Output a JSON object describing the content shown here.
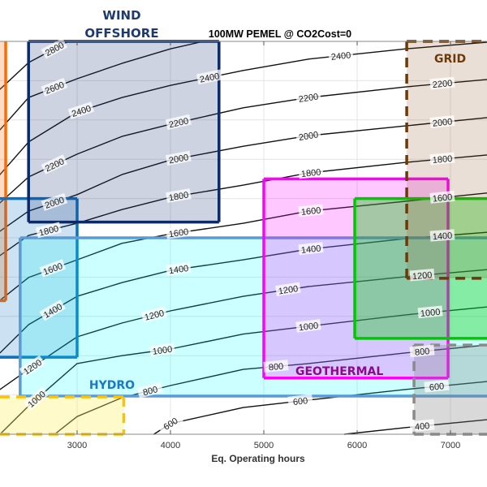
{
  "chart_data": {
    "type": "contour",
    "title": "100MW PEMEL @ CO2Cost=0",
    "xlabel": "Eq. Operating hours",
    "ylabel": "",
    "xlim": [
      2174,
      7391
    ],
    "ylim": [
      0,
      10
    ],
    "grid": true,
    "xticks": [
      3000,
      4000,
      5000,
      6000,
      7000
    ],
    "xtick_labels": [
      "3000",
      "4000",
      "5000",
      "6000",
      "7000"
    ],
    "yticks": [
      1,
      2,
      3,
      4,
      5,
      6,
      7,
      8,
      9
    ],
    "contour_x": [
      2174,
      2480,
      3000,
      3480,
      4000,
      4780,
      5480,
      6520,
      7390
    ],
    "contours": [
      {
        "level": 2800,
        "y": [
          8.78,
          9.46,
          10.12,
          10.54,
          10.85,
          11.47,
          11.8,
          12.1,
          12.3
        ],
        "labels_at": [
          2757
        ]
      },
      {
        "level": 2600,
        "y": [
          7.75,
          8.57,
          9.05,
          9.44,
          9.81,
          10.23,
          10.54,
          10.85,
          11.05
        ],
        "labels_at": [
          2757
        ]
      },
      {
        "level": 2400,
        "y": [
          6.61,
          7.44,
          8.2,
          8.57,
          8.88,
          9.26,
          9.55,
          9.81,
          9.98
        ],
        "labels_at": [
          3044,
          4418,
          5826,
          7000
        ]
      },
      {
        "level": 2200,
        "y": [
          5.89,
          6.55,
          7.13,
          7.58,
          7.89,
          8.31,
          8.57,
          8.84,
          9.03
        ],
        "labels_at": [
          2757,
          4087,
          5478,
          6913
        ]
      },
      {
        "level": 2000,
        "y": [
          5.17,
          5.68,
          6.1,
          6.61,
          6.98,
          7.33,
          7.6,
          7.85,
          8.06
        ],
        "labels_at": [
          2757,
          4087,
          5478,
          6913
        ]
      },
      {
        "level": 1800,
        "y": [
          4.55,
          5.06,
          5.37,
          5.72,
          6.03,
          6.34,
          6.65,
          6.92,
          7.11
        ],
        "labels_at": [
          2696,
          4087,
          5505,
          6913
        ]
      },
      {
        "level": 1600,
        "y": [
          3.41,
          3.99,
          4.44,
          4.86,
          5.1,
          5.37,
          5.68,
          5.93,
          6.14
        ],
        "labels_at": [
          2739,
          4087,
          5505,
          6913
        ]
      },
      {
        "level": 1400,
        "y": [
          2.07,
          2.79,
          3.51,
          3.86,
          4.17,
          4.44,
          4.71,
          4.98,
          5.14
        ],
        "labels_at": [
          2739,
          4087,
          5505,
          6913
        ]
      },
      {
        "level": 1200,
        "y": [
          1.14,
          1.65,
          2.48,
          2.83,
          3.14,
          3.51,
          3.76,
          4.01,
          4.19
        ],
        "labels_at": [
          2522,
          3826,
          5261,
          6696
        ]
      },
      {
        "level": 1000,
        "y": [
          0.0,
          0.72,
          1.8,
          2.0,
          2.17,
          2.55,
          2.75,
          3.04,
          3.24
        ],
        "labels_at": [
          2565,
          3913,
          5478,
          6783
        ]
      },
      {
        "level": 800,
        "y": [
          -1.14,
          -0.52,
          0.45,
          0.93,
          1.24,
          1.65,
          1.8,
          2.07,
          2.27
        ],
        "labels_at": [
          3783,
          5130,
          6696
        ]
      },
      {
        "level": 600,
        "y": [
          -2.6,
          -1.96,
          -1.14,
          -0.52,
          0.27,
          0.68,
          0.87,
          1.14,
          1.34
        ],
        "labels_at": [
          4000,
          5391,
          6852
        ]
      },
      {
        "level": 400,
        "y": [
          -4.44,
          -3.82,
          -2.99,
          -2.17,
          -1.34,
          -0.52,
          -0.1,
          0.17,
          0.37
        ],
        "labels_at": [
          6696
        ]
      }
    ],
    "regions": [
      {
        "id": "orange",
        "label": "",
        "x": [
          1500,
          2235
        ],
        "y": [
          3.4,
          10.5
        ],
        "fill": "rgba(255,130,50,0.28)",
        "stroke": "#ff6a00",
        "dashed": false
      },
      {
        "id": "wind-onshore",
        "label": "",
        "x": [
          1500,
          3000
        ],
        "y": [
          1.96,
          6.0
        ],
        "fill": "rgba(0,112,192,0.2)",
        "stroke": "#0a70c0",
        "dashed": false
      },
      {
        "id": "wind-offshore",
        "label": "WIND OFFSHORE",
        "label_lines": [
          "WIND",
          "OFFSHORE"
        ],
        "x": [
          2480,
          4520
        ],
        "y": [
          5.4,
          10.0
        ],
        "fill": "rgba(31,56,120,0.22)",
        "stroke": "#0b2a66",
        "dashed": false,
        "label_color": "#1f3a6e"
      },
      {
        "id": "hydro",
        "label": "HYDRO",
        "x": [
          2390,
          8000
        ],
        "y": [
          0.97,
          5.0
        ],
        "fill": "rgba(0,255,255,0.2)",
        "stroke": "#5b9bd5",
        "dashed": false,
        "label_color": "#1a78c8"
      },
      {
        "id": "yellow",
        "label": "",
        "x": [
          1500,
          3500
        ],
        "y": [
          0,
          0.95
        ],
        "fill": "rgba(255,240,100,0.35)",
        "stroke": "#ffc000",
        "dashed": true
      },
      {
        "id": "geothermal",
        "label": "GEOTHERMAL",
        "x": [
          5000,
          6974
        ],
        "y": [
          1.43,
          6.5
        ],
        "fill": "rgba(255,0,255,0.22)",
        "stroke": "#ff00ff",
        "dashed": false,
        "label_color": "#8b0a8b"
      },
      {
        "id": "green",
        "label": "",
        "x": [
          5974,
          8000
        ],
        "y": [
          2.44,
          6.0
        ],
        "fill": "rgba(0,200,0,0.35)",
        "stroke": "#00c800",
        "dashed": false
      },
      {
        "id": "grid",
        "label": "GRID",
        "x": [
          6531,
          8000
        ],
        "y": [
          3.97,
          10.0
        ],
        "fill": "rgba(140,80,30,0.18)",
        "stroke": "#6b3a0a",
        "dashed": true,
        "label_color": "#6b3a0a"
      },
      {
        "id": "gray",
        "label": "",
        "x": [
          6609,
          8000
        ],
        "y": [
          0,
          2.27
        ],
        "fill": "rgba(128,128,128,0.3)",
        "stroke": "#8a8a8a",
        "dashed": true
      }
    ]
  }
}
